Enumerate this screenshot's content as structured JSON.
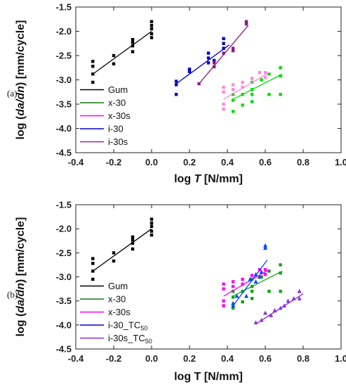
{
  "panels": [
    {
      "panel_label": "(a)",
      "legend_colors": [
        "#000000",
        "#0e7d0e",
        "#ff00ff",
        "#0000cc",
        "#9c1dbf"
      ]
    },
    {
      "panel_label": "(b)",
      "legend_colors": [
        "#000000",
        "#0e7d0e",
        "#ff00ff",
        "#0000cc",
        "#8a2be2"
      ]
    }
  ],
  "chart_data": [
    {
      "type": "scatter",
      "title": "",
      "xlabel_parts": [
        "log ",
        "T",
        " [N/mm]"
      ],
      "xlabel_italic": [
        false,
        true,
        false
      ],
      "ylabel_parts": [
        "log (",
        "da/dn",
        ") [mm/cycle]"
      ],
      "ylabel_italic": [
        false,
        true,
        false
      ],
      "xlim": [
        -0.4,
        1.0
      ],
      "ylim": [
        -4.5,
        -1.5
      ],
      "xticks": [
        "-0.4",
        "-0.2",
        "0.0",
        "0.2",
        "0.4",
        "0.6",
        "0.8",
        "1.0"
      ],
      "yticks": [
        "-1.5",
        "-2.0",
        "-2.5",
        "-3.0",
        "-3.5",
        "-4.0",
        "-4.5"
      ],
      "legend_position": "bottom-left",
      "series": [
        {
          "name": "Gum",
          "color": "#000000",
          "marker": "square",
          "points": [
            [
              -0.31,
              -2.62
            ],
            [
              -0.31,
              -2.72
            ],
            [
              -0.31,
              -2.88
            ],
            [
              -0.31,
              -3.05
            ],
            [
              -0.2,
              -2.5
            ],
            [
              -0.2,
              -2.67
            ],
            [
              -0.1,
              -2.17
            ],
            [
              -0.1,
              -2.23
            ],
            [
              -0.1,
              -2.3
            ],
            [
              -0.1,
              -2.42
            ],
            [
              0.0,
              -1.8
            ],
            [
              0.0,
              -1.88
            ],
            [
              0.0,
              -1.95
            ],
            [
              0.0,
              -2.05
            ],
            [
              0.0,
              -2.13
            ]
          ],
          "fit": [
            [
              -0.31,
              -2.88
            ],
            [
              0.0,
              -2.0
            ]
          ]
        },
        {
          "name": "x-30",
          "color": "#00dd00",
          "marker": "square",
          "points": [
            [
              0.43,
              -3.3
            ],
            [
              0.43,
              -3.42
            ],
            [
              0.43,
              -3.65
            ],
            [
              0.48,
              -3.3
            ],
            [
              0.48,
              -3.52
            ],
            [
              0.53,
              -3.05
            ],
            [
              0.53,
              -3.2
            ],
            [
              0.53,
              -3.3
            ],
            [
              0.53,
              -3.45
            ],
            [
              0.58,
              -3.0
            ],
            [
              0.62,
              -2.88
            ],
            [
              0.62,
              -3.3
            ],
            [
              0.68,
              -2.75
            ],
            [
              0.68,
              -2.92
            ],
            [
              0.68,
              -3.3
            ]
          ],
          "fit": [
            [
              0.43,
              -3.4
            ],
            [
              0.69,
              -2.88
            ]
          ]
        },
        {
          "name": "x-30s",
          "color": "#ff88dd",
          "marker": "square",
          "points": [
            [
              0.38,
              -3.15
            ],
            [
              0.38,
              -3.25
            ],
            [
              0.38,
              -3.5
            ],
            [
              0.38,
              -3.6
            ],
            [
              0.43,
              -3.1
            ],
            [
              0.43,
              -3.2
            ],
            [
              0.48,
              -3.05
            ],
            [
              0.48,
              -3.15
            ],
            [
              0.53,
              -2.97
            ],
            [
              0.57,
              -2.85
            ],
            [
              0.6,
              -2.85
            ],
            [
              0.6,
              -2.95
            ]
          ],
          "fit": [
            [
              0.38,
              -3.4
            ],
            [
              0.62,
              -2.85
            ]
          ]
        },
        {
          "name": "i-30",
          "color": "#0000cc",
          "marker": "square",
          "points": [
            [
              0.13,
              -3.03
            ],
            [
              0.13,
              -3.1
            ],
            [
              0.13,
              -3.3
            ],
            [
              0.2,
              -2.78
            ],
            [
              0.2,
              -2.83
            ],
            [
              0.3,
              -2.45
            ],
            [
              0.3,
              -2.55
            ],
            [
              0.3,
              -2.65
            ],
            [
              0.33,
              -2.6
            ],
            [
              0.38,
              -2.15
            ],
            [
              0.38,
              -2.25
            ],
            [
              0.38,
              -2.35
            ]
          ],
          "fit": [
            [
              0.13,
              -3.08
            ],
            [
              0.41,
              -2.28
            ]
          ]
        },
        {
          "name": "i-30s",
          "color": "#8b1a89",
          "marker": "square",
          "points": [
            [
              0.25,
              -3.08
            ],
            [
              0.33,
              -2.65
            ],
            [
              0.33,
              -2.73
            ],
            [
              0.38,
              -2.45
            ],
            [
              0.43,
              -2.35
            ],
            [
              0.43,
              -2.4
            ],
            [
              0.5,
              -1.8
            ],
            [
              0.5,
              -1.85
            ]
          ],
          "fit": [
            [
              0.25,
              -3.08
            ],
            [
              0.51,
              -1.88
            ]
          ]
        }
      ]
    },
    {
      "type": "scatter",
      "title": "",
      "xlabel_parts": [
        "log T [N/mm]"
      ],
      "xlabel_italic": [
        false
      ],
      "ylabel_parts": [
        "log (",
        "da/dn",
        ") [mm/cycle]"
      ],
      "ylabel_italic": [
        false,
        true,
        false
      ],
      "xlim": [
        -0.4,
        1.0
      ],
      "ylim": [
        -4.5,
        -1.5
      ],
      "xticks": [
        "-0.4",
        "-0.2",
        "0.0",
        "0.2",
        "0.4",
        "0.6",
        "0.8",
        "1.0"
      ],
      "yticks": [
        "-1.5",
        "-2.0",
        "-2.5",
        "-3.0",
        "-3.5",
        "-4.0",
        "-4.5"
      ],
      "legend_position": "bottom-left",
      "series": [
        {
          "name": "Gum",
          "color": "#000000",
          "marker": "square",
          "points": [
            [
              -0.31,
              -2.62
            ],
            [
              -0.31,
              -2.72
            ],
            [
              -0.31,
              -2.88
            ],
            [
              -0.31,
              -3.05
            ],
            [
              -0.2,
              -2.5
            ],
            [
              -0.2,
              -2.67
            ],
            [
              -0.1,
              -2.17
            ],
            [
              -0.1,
              -2.23
            ],
            [
              -0.1,
              -2.3
            ],
            [
              -0.1,
              -2.42
            ],
            [
              0.0,
              -1.8
            ],
            [
              0.0,
              -1.88
            ],
            [
              0.0,
              -1.95
            ],
            [
              0.0,
              -2.05
            ],
            [
              0.0,
              -2.13
            ]
          ],
          "fit": [
            [
              -0.31,
              -2.88
            ],
            [
              0.0,
              -2.0
            ]
          ]
        },
        {
          "name": "x-30",
          "color": "#0ea50e",
          "marker": "square",
          "points": [
            [
              0.43,
              -3.3
            ],
            [
              0.43,
              -3.42
            ],
            [
              0.43,
              -3.65
            ],
            [
              0.48,
              -3.3
            ],
            [
              0.48,
              -3.52
            ],
            [
              0.53,
              -3.05
            ],
            [
              0.53,
              -3.2
            ],
            [
              0.53,
              -3.3
            ],
            [
              0.53,
              -3.45
            ],
            [
              0.58,
              -3.0
            ],
            [
              0.62,
              -2.88
            ],
            [
              0.62,
              -3.3
            ],
            [
              0.68,
              -2.75
            ],
            [
              0.68,
              -2.92
            ],
            [
              0.68,
              -3.3
            ]
          ],
          "fit": [
            [
              0.43,
              -3.4
            ],
            [
              0.69,
              -2.88
            ]
          ]
        },
        {
          "name": "x-30s",
          "color": "#ff00ff",
          "marker": "square",
          "points": [
            [
              0.38,
              -3.15
            ],
            [
              0.38,
              -3.25
            ],
            [
              0.38,
              -3.5
            ],
            [
              0.38,
              -3.6
            ],
            [
              0.43,
              -3.1
            ],
            [
              0.43,
              -3.2
            ],
            [
              0.48,
              -3.05
            ],
            [
              0.48,
              -3.15
            ],
            [
              0.53,
              -2.97
            ],
            [
              0.57,
              -2.85
            ],
            [
              0.6,
              -2.85
            ],
            [
              0.6,
              -2.95
            ]
          ],
          "fit": [
            [
              0.38,
              -3.4
            ],
            [
              0.62,
              -2.85
            ]
          ]
        },
        {
          "name_parts": [
            "i-30_TC",
            "50"
          ],
          "name_sub": [
            false,
            true
          ],
          "color": "#0044ff",
          "marker": "triangle",
          "points": [
            [
              0.43,
              -3.55
            ],
            [
              0.43,
              -3.6
            ],
            [
              0.45,
              -3.4
            ],
            [
              0.5,
              -3.4
            ],
            [
              0.52,
              -3.05
            ],
            [
              0.55,
              -3.1
            ],
            [
              0.55,
              -2.95
            ],
            [
              0.57,
              -3.0
            ],
            [
              0.58,
              -2.9
            ],
            [
              0.6,
              -2.35
            ],
            [
              0.6,
              -2.4
            ]
          ],
          "fit": [
            [
              0.43,
              -3.6
            ],
            [
              0.61,
              -2.65
            ]
          ]
        },
        {
          "name_parts": [
            "i-30s_TC",
            "50"
          ],
          "name_sub": [
            false,
            true
          ],
          "color": "#8a2be2",
          "marker": "triangle",
          "points": [
            [
              0.55,
              -3.95
            ],
            [
              0.58,
              -3.9
            ],
            [
              0.6,
              -3.75
            ],
            [
              0.63,
              -3.8
            ],
            [
              0.65,
              -3.7
            ],
            [
              0.68,
              -3.65
            ],
            [
              0.7,
              -3.6
            ],
            [
              0.72,
              -3.5
            ],
            [
              0.75,
              -3.45
            ],
            [
              0.78,
              -3.3
            ],
            [
              0.78,
              -3.45
            ]
          ],
          "fit": [
            [
              0.55,
              -3.98
            ],
            [
              0.8,
              -3.35
            ]
          ]
        }
      ]
    }
  ]
}
